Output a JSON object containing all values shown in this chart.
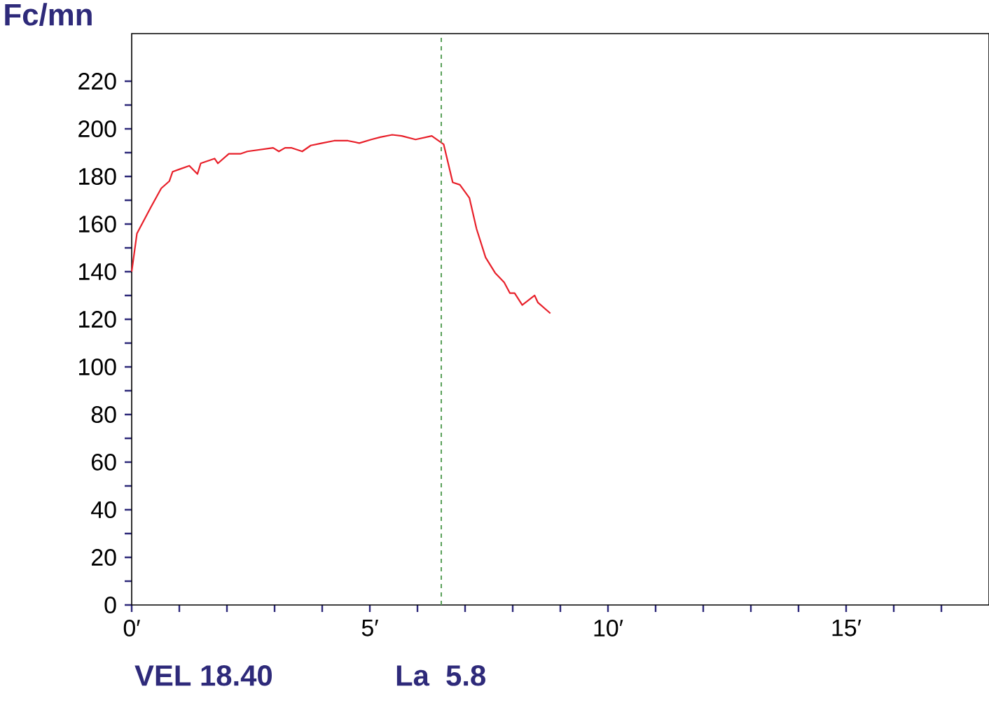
{
  "chart_data": {
    "type": "line",
    "ylabel": "Fc/mn",
    "x": [
      0,
      0.11,
      0.4,
      0.62,
      0.79,
      0.86,
      1.21,
      1.38,
      1.45,
      1.74,
      1.81,
      2.04,
      2.28,
      2.43,
      2.97,
      3.09,
      3.22,
      3.36,
      3.58,
      3.76,
      4.0,
      4.25,
      4.54,
      4.78,
      5.03,
      5.22,
      5.47,
      5.67,
      5.96,
      6.3,
      6.55,
      6.74,
      6.89,
      7.09,
      7.24,
      7.43,
      7.63,
      7.82,
      7.94,
      8.04,
      8.2,
      8.46,
      8.53,
      8.79
    ],
    "series": [
      {
        "color": "#e8202a",
        "values": [
          140,
          156,
          167,
          175,
          178,
          182,
          184.5,
          181,
          185.5,
          187.5,
          185.5,
          189.5,
          189.5,
          190.5,
          192,
          190.5,
          192,
          192,
          190.5,
          193,
          194,
          195,
          195,
          194,
          195.5,
          196.5,
          197.5,
          197,
          195.5,
          197,
          193.5,
          177.5,
          176.5,
          171,
          158,
          146,
          139.5,
          135.5,
          131,
          131,
          126,
          130,
          127,
          122.5
        ]
      }
    ],
    "xlim": [
      0,
      18
    ],
    "ylim": [
      0,
      240
    ],
    "xticks": [
      {
        "value": 0,
        "label": "0′"
      },
      {
        "value": 1,
        "label": null
      },
      {
        "value": 2,
        "label": null
      },
      {
        "value": 3,
        "label": null
      },
      {
        "value": 4,
        "label": null
      },
      {
        "value": 5,
        "label": "5′"
      },
      {
        "value": 6,
        "label": null
      },
      {
        "value": 7,
        "label": null
      },
      {
        "value": 8,
        "label": null
      },
      {
        "value": 9,
        "label": null
      },
      {
        "value": 10,
        "label": "10′"
      },
      {
        "value": 11,
        "label": null
      },
      {
        "value": 12,
        "label": null
      },
      {
        "value": 13,
        "label": null
      },
      {
        "value": 14,
        "label": null
      },
      {
        "value": 15,
        "label": "15′"
      },
      {
        "value": 16,
        "label": null
      },
      {
        "value": 17,
        "label": null
      }
    ],
    "yticks": [
      0,
      {
        "value": 10,
        "label": null
      },
      20,
      {
        "value": 30,
        "label": null
      },
      40,
      {
        "value": 50,
        "label": null
      },
      60,
      {
        "value": 70,
        "label": null
      },
      80,
      {
        "value": 90,
        "label": null
      },
      100,
      {
        "value": 110,
        "label": null
      },
      120,
      {
        "value": 130,
        "label": null
      },
      140,
      {
        "value": 150,
        "label": null
      },
      160,
      {
        "value": 170,
        "label": null
      },
      180,
      {
        "value": 190,
        "label": null
      },
      200,
      {
        "value": 210,
        "label": null
      },
      220
    ],
    "ref_lines": [
      {
        "axis": "x",
        "value": 6.5,
        "color": "#5aa05a",
        "line_style": "dashed"
      }
    ],
    "annotations": [
      "VEL 18.40",
      "La  5.8"
    ]
  }
}
